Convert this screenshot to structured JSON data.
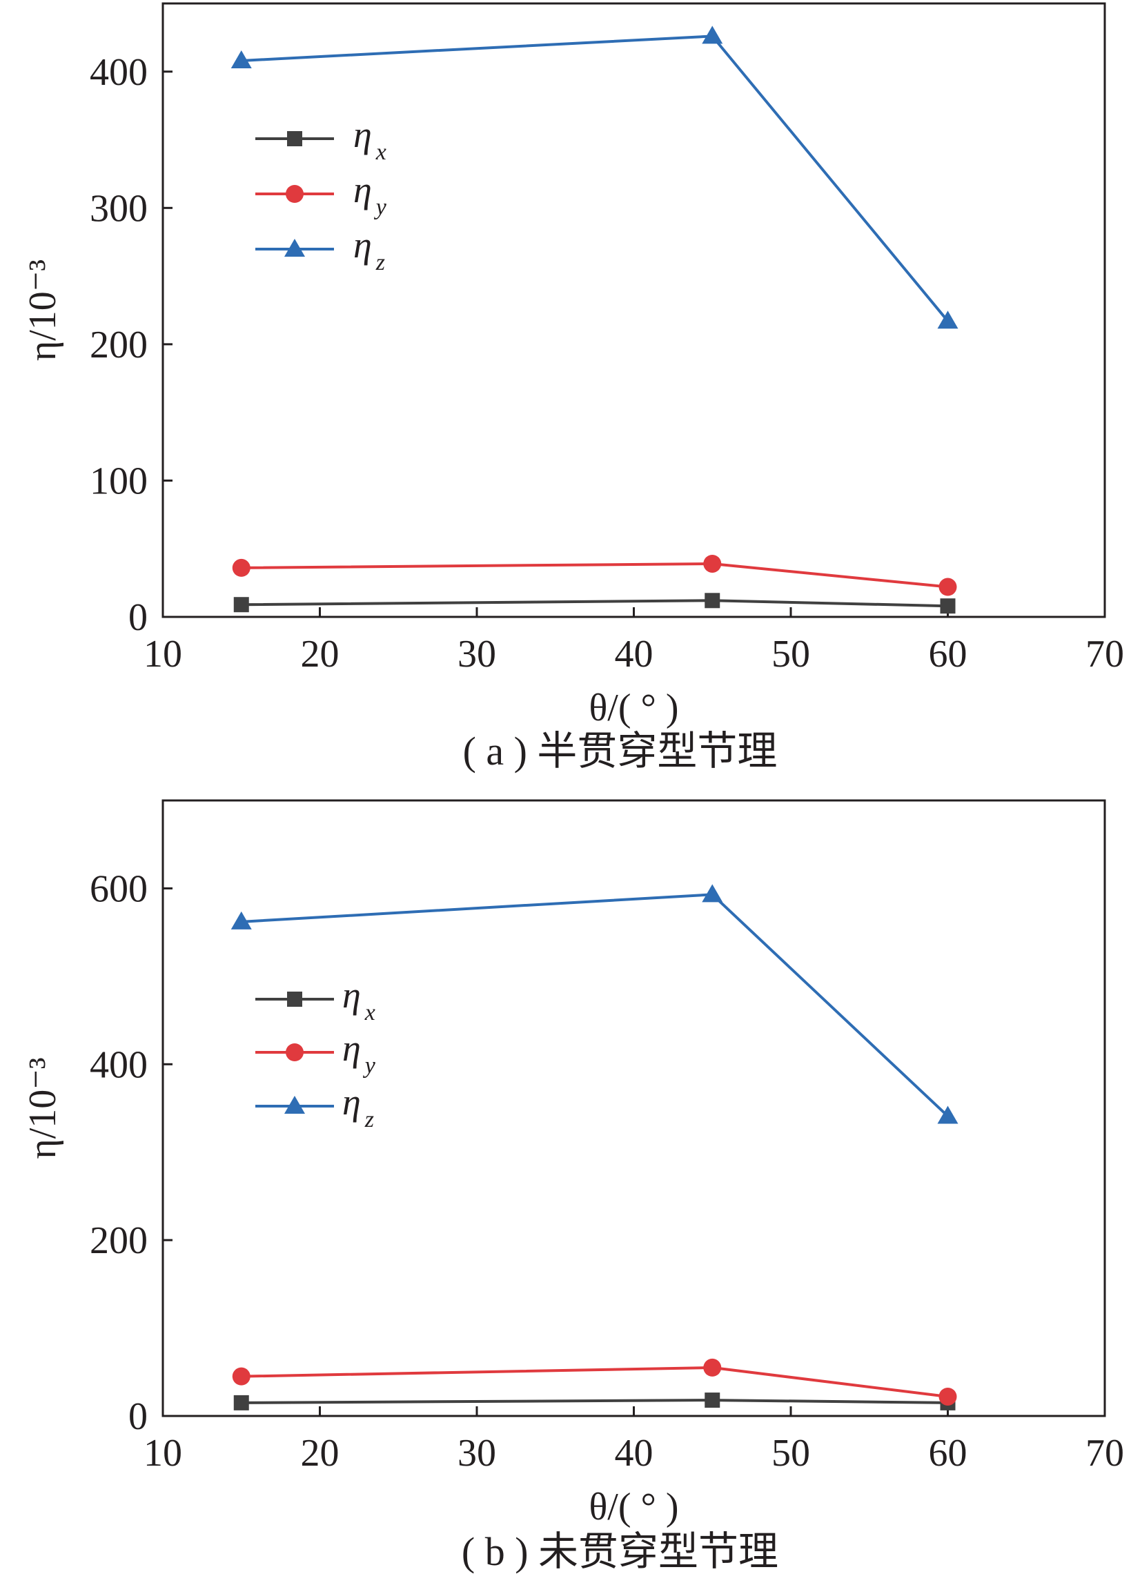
{
  "colors": {
    "eta_x": "#404040",
    "eta_y": "#e03a3e",
    "eta_z": "#2e6db4",
    "axis": "#231f20"
  },
  "chart_data": [
    {
      "type": "line",
      "caption": "( a ) 半贯穿型节理",
      "xlabel": "θ/( ° )",
      "ylabel": "η/10⁻³",
      "xlim": [
        10,
        70
      ],
      "ylim": [
        0,
        450
      ],
      "xticks": [
        "10",
        "20",
        "30",
        "40",
        "50",
        "60",
        "70"
      ],
      "yticks": [
        "0",
        "100",
        "200",
        "300",
        "400"
      ],
      "x": [
        15,
        45,
        60
      ],
      "legend_position": "upper-left",
      "series": [
        {
          "name": "η",
          "sub": "x",
          "marker": "square",
          "values": [
            9,
            12,
            8
          ]
        },
        {
          "name": "η",
          "sub": "y",
          "marker": "circle",
          "values": [
            36,
            39,
            22
          ]
        },
        {
          "name": "η",
          "sub": "z",
          "marker": "triangle",
          "values": [
            408,
            426,
            217
          ]
        }
      ]
    },
    {
      "type": "line",
      "caption": "( b ) 未贯穿型节理",
      "xlabel": "θ/( ° )",
      "ylabel": "η/10⁻³",
      "xlim": [
        10,
        70
      ],
      "ylim": [
        0,
        700
      ],
      "xticks": [
        "10",
        "20",
        "30",
        "40",
        "50",
        "60",
        "70"
      ],
      "yticks": [
        "0",
        "200",
        "400",
        "600"
      ],
      "x": [
        15,
        45,
        60
      ],
      "legend_position": "upper-left",
      "series": [
        {
          "name": "η",
          "sub": "x",
          "marker": "square",
          "values": [
            15,
            18,
            15
          ]
        },
        {
          "name": "η",
          "sub": "y",
          "marker": "circle",
          "values": [
            45,
            55,
            22
          ]
        },
        {
          "name": "η",
          "sub": "z",
          "marker": "triangle",
          "values": [
            562,
            593,
            341
          ]
        }
      ]
    }
  ]
}
